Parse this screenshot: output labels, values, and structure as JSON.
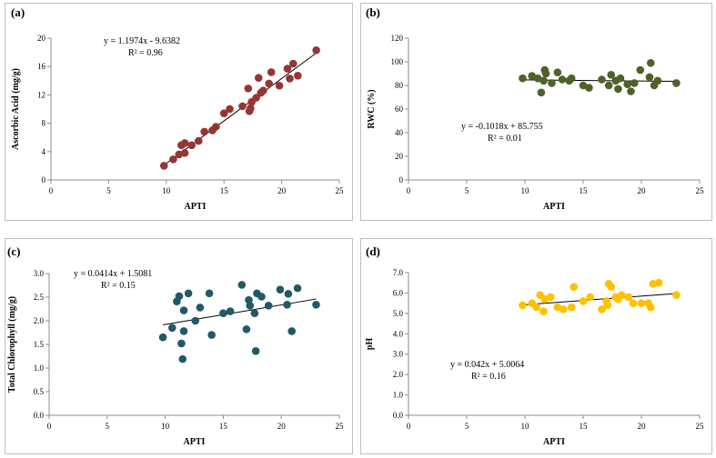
{
  "chart_data": [
    {
      "type": "scatter",
      "panel_label": "(a)",
      "xlabel": "APTI",
      "ylabel": "Ascorbic Acid (mg/g)",
      "xlim": [
        0,
        25
      ],
      "ylim": [
        0,
        20
      ],
      "xticks": [
        0,
        5,
        10,
        15,
        20,
        25
      ],
      "yticks": [
        0,
        4,
        8,
        12,
        16,
        20
      ],
      "ytick_labels": [
        "0",
        "4",
        "8",
        "12",
        "16",
        "20"
      ],
      "equation": "y = 1.1974x  - 9.6382",
      "r2": "R² = 0.96",
      "trendline": {
        "slope": 1.1974,
        "intercept": -9.6382,
        "x_range": [
          9.8,
          23
        ]
      },
      "marker_color": "#943634",
      "points": [
        [
          9.8,
          2.0
        ],
        [
          10.6,
          2.9
        ],
        [
          11.1,
          3.6
        ],
        [
          11.3,
          4.9
        ],
        [
          11.6,
          5.2
        ],
        [
          11.6,
          3.8
        ],
        [
          12.2,
          4.9
        ],
        [
          12.8,
          5.5
        ],
        [
          13.3,
          6.8
        ],
        [
          14.0,
          7.0
        ],
        [
          14.3,
          7.5
        ],
        [
          15.0,
          9.4
        ],
        [
          15.5,
          10.0
        ],
        [
          16.6,
          10.4
        ],
        [
          17.1,
          12.9
        ],
        [
          17.2,
          9.7
        ],
        [
          17.3,
          10.1
        ],
        [
          17.4,
          11.0
        ],
        [
          17.8,
          11.6
        ],
        [
          18.0,
          14.4
        ],
        [
          18.2,
          12.3
        ],
        [
          18.4,
          12.6
        ],
        [
          18.9,
          13.6
        ],
        [
          19.1,
          15.2
        ],
        [
          19.8,
          13.3
        ],
        [
          20.5,
          15.7
        ],
        [
          20.7,
          14.3
        ],
        [
          21.0,
          16.4
        ],
        [
          21.4,
          14.7
        ],
        [
          23.0,
          18.3
        ]
      ]
    },
    {
      "type": "scatter",
      "panel_label": "(b)",
      "xlabel": "APTI",
      "ylabel": "RWC (%)",
      "xlim": [
        0,
        25
      ],
      "ylim": [
        0,
        120
      ],
      "xticks": [
        0,
        5,
        10,
        15,
        20,
        25
      ],
      "yticks": [
        0,
        20,
        40,
        60,
        80,
        100,
        120
      ],
      "ytick_labels": [
        "0",
        "20",
        "40",
        "60",
        "80",
        "100",
        "120"
      ],
      "equation": "y = -0.1018x  + 85.755",
      "r2": "R² = 0.01",
      "trendline": {
        "slope": -0.1018,
        "intercept": 85.755,
        "x_range": [
          9.8,
          23
        ]
      },
      "marker_color": "#4F6228",
      "points": [
        [
          9.8,
          86
        ],
        [
          10.6,
          88
        ],
        [
          11.1,
          86
        ],
        [
          11.4,
          74
        ],
        [
          11.6,
          84
        ],
        [
          11.7,
          93
        ],
        [
          11.8,
          90
        ],
        [
          12.3,
          82
        ],
        [
          12.8,
          91
        ],
        [
          13.2,
          85
        ],
        [
          13.8,
          84
        ],
        [
          14.0,
          86
        ],
        [
          15.0,
          80
        ],
        [
          15.5,
          78
        ],
        [
          16.6,
          85
        ],
        [
          17.2,
          80
        ],
        [
          17.4,
          89
        ],
        [
          17.8,
          84
        ],
        [
          18.0,
          77
        ],
        [
          18.2,
          86
        ],
        [
          18.8,
          81
        ],
        [
          19.1,
          75
        ],
        [
          19.4,
          82
        ],
        [
          19.9,
          93
        ],
        [
          20.7,
          87
        ],
        [
          20.8,
          99
        ],
        [
          21.1,
          80
        ],
        [
          21.4,
          84
        ],
        [
          23.0,
          82
        ]
      ]
    },
    {
      "type": "scatter",
      "panel_label": "(c)",
      "xlabel": "APTI",
      "ylabel": "Total Chlorophyll (mg/g)",
      "xlim": [
        0,
        25
      ],
      "ylim": [
        0,
        3
      ],
      "xticks": [
        0,
        5,
        10,
        15,
        20,
        25
      ],
      "yticks": [
        0,
        0.5,
        1,
        1.5,
        2,
        2.5,
        3
      ],
      "ytick_labels": [
        "0.0",
        "0.5",
        "1.0",
        "1.5",
        "2.0",
        "2.5",
        "3.0"
      ],
      "equation": "y = 0.0414x  + 1.5081",
      "r2": "R² = 0.15",
      "trendline": {
        "slope": 0.0414,
        "intercept": 1.5081,
        "x_range": [
          9.8,
          23
        ]
      },
      "marker_color": "#215968",
      "points": [
        [
          9.8,
          1.65
        ],
        [
          10.6,
          1.85
        ],
        [
          11.0,
          2.41
        ],
        [
          11.2,
          2.52
        ],
        [
          11.4,
          1.52
        ],
        [
          11.5,
          1.19
        ],
        [
          11.6,
          1.78
        ],
        [
          11.6,
          2.22
        ],
        [
          12.0,
          2.58
        ],
        [
          12.6,
          2.0
        ],
        [
          13.0,
          2.28
        ],
        [
          13.8,
          2.58
        ],
        [
          14.0,
          1.7
        ],
        [
          15.0,
          2.16
        ],
        [
          15.6,
          2.2
        ],
        [
          16.6,
          2.76
        ],
        [
          17.0,
          1.82
        ],
        [
          17.2,
          2.44
        ],
        [
          17.3,
          2.32
        ],
        [
          17.7,
          2.16
        ],
        [
          17.8,
          1.36
        ],
        [
          17.9,
          2.58
        ],
        [
          18.3,
          2.51
        ],
        [
          18.9,
          2.32
        ],
        [
          19.9,
          2.66
        ],
        [
          20.5,
          2.34
        ],
        [
          20.6,
          2.57
        ],
        [
          20.9,
          1.78
        ],
        [
          21.4,
          2.69
        ],
        [
          23.0,
          2.34
        ]
      ]
    },
    {
      "type": "scatter",
      "panel_label": "(d)",
      "xlabel": "APTI",
      "ylabel": "pH",
      "xlim": [
        0,
        25
      ],
      "ylim": [
        0,
        7
      ],
      "xticks": [
        0,
        5,
        10,
        15,
        20,
        25
      ],
      "yticks": [
        0,
        1,
        2,
        3,
        4,
        5,
        6,
        7
      ],
      "ytick_labels": [
        "0.0",
        "1.0",
        "2.0",
        "3.0",
        "4.0",
        "5.0",
        "6.0",
        "7.0"
      ],
      "equation": "y = 0.042x  + 5.0064",
      "r2": "R² = 0.16",
      "trendline": {
        "slope": 0.042,
        "intercept": 5.0064,
        "x_range": [
          9.8,
          23
        ]
      },
      "marker_color": "#FFC000",
      "points": [
        [
          9.8,
          5.4
        ],
        [
          10.6,
          5.5
        ],
        [
          11.0,
          5.3
        ],
        [
          11.3,
          5.9
        ],
        [
          11.6,
          5.1
        ],
        [
          11.7,
          5.7
        ],
        [
          12.2,
          5.8
        ],
        [
          12.8,
          5.3
        ],
        [
          13.3,
          5.2
        ],
        [
          14.0,
          5.3
        ],
        [
          14.2,
          6.3
        ],
        [
          15.0,
          5.6
        ],
        [
          15.6,
          5.8
        ],
        [
          16.6,
          5.2
        ],
        [
          17.0,
          5.6
        ],
        [
          17.1,
          5.4
        ],
        [
          17.2,
          6.45
        ],
        [
          17.4,
          6.3
        ],
        [
          17.8,
          5.8
        ],
        [
          18.0,
          5.7
        ],
        [
          18.3,
          5.9
        ],
        [
          18.9,
          5.8
        ],
        [
          19.3,
          5.5
        ],
        [
          20.0,
          5.5
        ],
        [
          20.6,
          5.5
        ],
        [
          20.8,
          5.3
        ],
        [
          21.0,
          6.45
        ],
        [
          21.5,
          6.5
        ],
        [
          23.0,
          5.9
        ]
      ]
    }
  ]
}
